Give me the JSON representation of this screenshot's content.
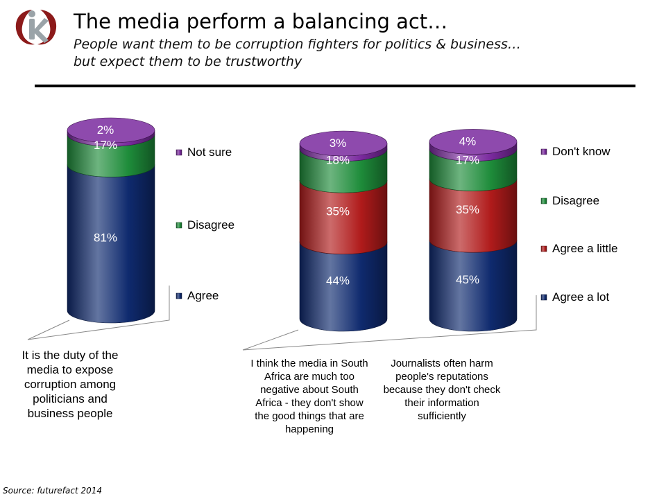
{
  "header": {
    "title": "The media perform a balancing act…",
    "subtitle_line1": "People want them to be corruption fighters for politics & business…",
    "subtitle_line2": "but expect them to be trustworthy"
  },
  "source": "Source: futurefact 2014",
  "colors": {
    "navy": "#0f2a6e",
    "green": "#1e8c3a",
    "red": "#b01b1b",
    "purple": "#7a2a9e"
  },
  "chart_data": [
    {
      "type": "bar",
      "stacked": true,
      "categories": [
        "It is the duty of the media to expose corruption among politicians and business people"
      ],
      "series": [
        {
          "name": "Agree",
          "values": [
            81
          ],
          "color": "#0f2a6e"
        },
        {
          "name": "Disagree",
          "values": [
            17
          ],
          "color": "#1e8c3a"
        },
        {
          "name": "Not sure",
          "values": [
            2
          ],
          "color": "#7a2a9e"
        }
      ],
      "data_labels": [
        [
          "81%",
          "17%",
          "2%"
        ]
      ],
      "legend": "right"
    },
    {
      "type": "bar",
      "stacked": true,
      "categories": [
        "I think the media in South Africa are much too negative about South Africa - they don't show the good things that are happening",
        "Journalists often harm people's reputations because they don't check their information sufficiently"
      ],
      "series": [
        {
          "name": "Agree a lot",
          "values": [
            44,
            45
          ],
          "color": "#0f2a6e"
        },
        {
          "name": "Agree a little",
          "values": [
            35,
            35
          ],
          "color": "#b01b1b"
        },
        {
          "name": "Disagree",
          "values": [
            18,
            17
          ],
          "color": "#1e8c3a"
        },
        {
          "name": "Don't know",
          "values": [
            3,
            4
          ],
          "color": "#7a2a9e"
        }
      ],
      "data_labels": [
        [
          "44%",
          "35%",
          "18%",
          "3%"
        ],
        [
          "45%",
          "35%",
          "17%",
          "4%"
        ]
      ],
      "legend": "right"
    }
  ]
}
